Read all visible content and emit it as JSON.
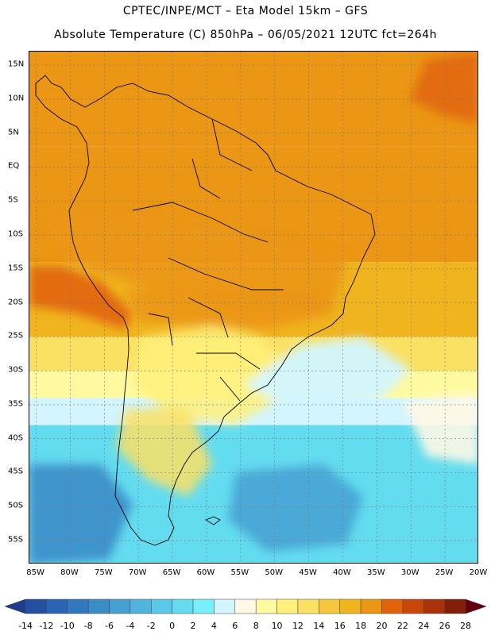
{
  "header": {
    "line1": "CPTEC/INPE/MCT –   Eta Model 15km – GFS",
    "line2": "Absolute Temperature (C) 850hPa – 06/05/2021 12UTC fct=264h"
  },
  "map": {
    "lon_range": [
      -86,
      -20
    ],
    "lat_range": [
      -58.5,
      17
    ],
    "lat_ticks": [
      {
        "label": "15N",
        "lat": 15
      },
      {
        "label": "10N",
        "lat": 10
      },
      {
        "label": "5N",
        "lat": 5
      },
      {
        "label": "EQ",
        "lat": 0
      },
      {
        "label": "5S",
        "lat": -5
      },
      {
        "label": "10S",
        "lat": -10
      },
      {
        "label": "15S",
        "lat": -15
      },
      {
        "label": "20S",
        "lat": -20
      },
      {
        "label": "25S",
        "lat": -25
      },
      {
        "label": "30S",
        "lat": -30
      },
      {
        "label": "35S",
        "lat": -35
      },
      {
        "label": "40S",
        "lat": -40
      },
      {
        "label": "45S",
        "lat": -45
      },
      {
        "label": "50S",
        "lat": -50
      },
      {
        "label": "55S",
        "lat": -55
      }
    ],
    "lon_ticks": [
      {
        "label": "85W",
        "lon": -85
      },
      {
        "label": "80W",
        "lon": -80
      },
      {
        "label": "75W",
        "lon": -75
      },
      {
        "label": "70W",
        "lon": -70
      },
      {
        "label": "65W",
        "lon": -65
      },
      {
        "label": "60W",
        "lon": -60
      },
      {
        "label": "55W",
        "lon": -55
      },
      {
        "label": "50W",
        "lon": -50
      },
      {
        "label": "45W",
        "lon": -45
      },
      {
        "label": "40W",
        "lon": -40
      },
      {
        "label": "35W",
        "lon": -35
      },
      {
        "label": "30W",
        "lon": -30
      },
      {
        "label": "25W",
        "lon": -25
      },
      {
        "label": "20W",
        "lon": -20
      }
    ],
    "gridlines": true,
    "field_bands": [
      {
        "lat_top": 17,
        "lat_bottom": 3,
        "value": 18
      },
      {
        "lat_top": 3,
        "lat_bottom": -14,
        "value": 18
      },
      {
        "lat_top": -14,
        "lat_bottom": -25,
        "value": 16
      },
      {
        "lat_top": -25,
        "lat_bottom": -30,
        "value": 12
      },
      {
        "lat_top": -30,
        "lat_bottom": -34,
        "value": 8
      },
      {
        "lat_top": -34,
        "lat_bottom": -38,
        "value": 4
      },
      {
        "lat_top": -38,
        "lat_bottom": -58.5,
        "value": 0
      }
    ]
  },
  "colorbar": {
    "labels": [
      "-14",
      "-12",
      "-10",
      "-8",
      "-6",
      "-4",
      "-2",
      "0",
      "2",
      "4",
      "6",
      "8",
      "10",
      "12",
      "14",
      "16",
      "18",
      "20",
      "22",
      "24",
      "26",
      "28"
    ],
    "colors": [
      "#1e3c8c",
      "#2350a0",
      "#2a64b4",
      "#3278be",
      "#3c8cc8",
      "#46a0d2",
      "#50b4dc",
      "#5ac8e6",
      "#64dcf0",
      "#78f0fa",
      "#d2f5ff",
      "#fff8e6",
      "#fffaa0",
      "#fff07a",
      "#fae164",
      "#f5c83c",
      "#f0b41e",
      "#eb9614",
      "#e1640a",
      "#c8460a",
      "#aa320a",
      "#821e0a",
      "#64000a"
    ]
  }
}
